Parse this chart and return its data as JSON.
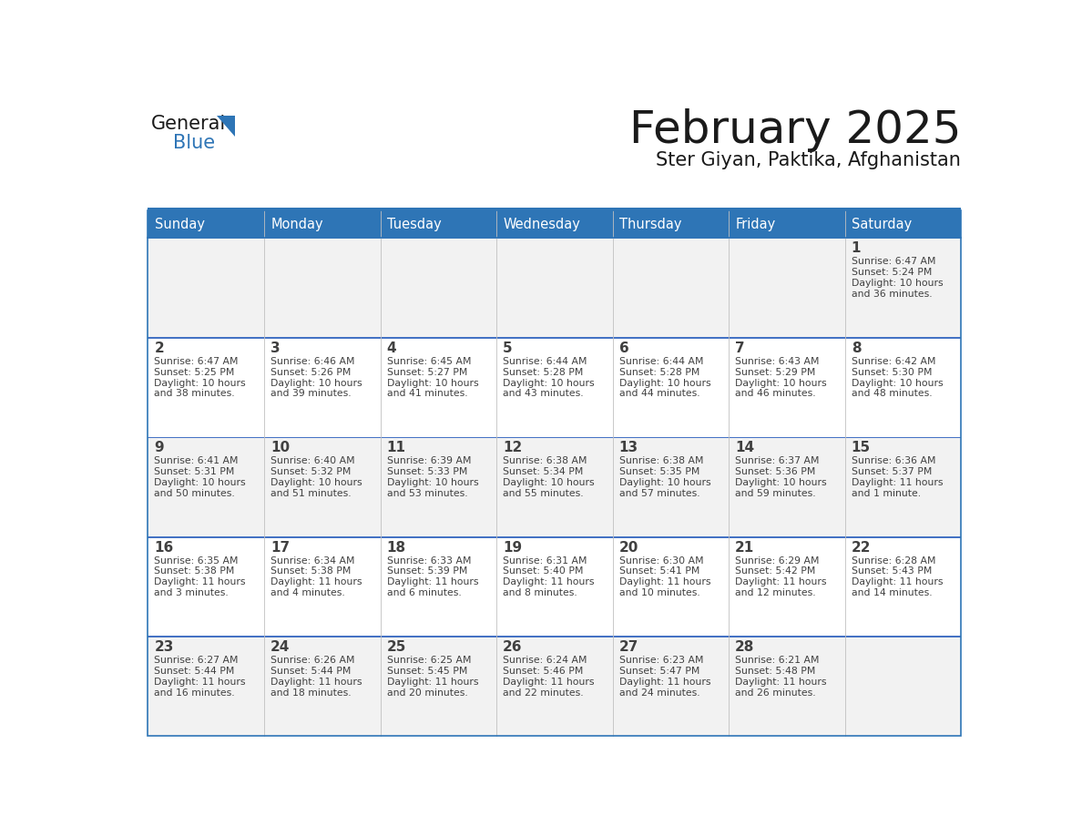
{
  "title": "February 2025",
  "subtitle": "Ster Giyan, Paktika, Afghanistan",
  "header_bg": "#2E75B6",
  "header_text_color": "#FFFFFF",
  "cell_bg_odd": "#F2F2F2",
  "cell_bg_even": "#FFFFFF",
  "border_color": "#2E75B6",
  "row_divider_color": "#4472C4",
  "day_number_color": "#404040",
  "cell_text_color": "#404040",
  "days_of_week": [
    "Sunday",
    "Monday",
    "Tuesday",
    "Wednesday",
    "Thursday",
    "Friday",
    "Saturday"
  ],
  "weeks": [
    [
      {
        "day": null,
        "sunrise": null,
        "sunset": null,
        "daylight": null
      },
      {
        "day": null,
        "sunrise": null,
        "sunset": null,
        "daylight": null
      },
      {
        "day": null,
        "sunrise": null,
        "sunset": null,
        "daylight": null
      },
      {
        "day": null,
        "sunrise": null,
        "sunset": null,
        "daylight": null
      },
      {
        "day": null,
        "sunrise": null,
        "sunset": null,
        "daylight": null
      },
      {
        "day": null,
        "sunrise": null,
        "sunset": null,
        "daylight": null
      },
      {
        "day": 1,
        "sunrise": "6:47 AM",
        "sunset": "5:24 PM",
        "daylight": "10 hours\nand 36 minutes."
      }
    ],
    [
      {
        "day": 2,
        "sunrise": "6:47 AM",
        "sunset": "5:25 PM",
        "daylight": "10 hours\nand 38 minutes."
      },
      {
        "day": 3,
        "sunrise": "6:46 AM",
        "sunset": "5:26 PM",
        "daylight": "10 hours\nand 39 minutes."
      },
      {
        "day": 4,
        "sunrise": "6:45 AM",
        "sunset": "5:27 PM",
        "daylight": "10 hours\nand 41 minutes."
      },
      {
        "day": 5,
        "sunrise": "6:44 AM",
        "sunset": "5:28 PM",
        "daylight": "10 hours\nand 43 minutes."
      },
      {
        "day": 6,
        "sunrise": "6:44 AM",
        "sunset": "5:28 PM",
        "daylight": "10 hours\nand 44 minutes."
      },
      {
        "day": 7,
        "sunrise": "6:43 AM",
        "sunset": "5:29 PM",
        "daylight": "10 hours\nand 46 minutes."
      },
      {
        "day": 8,
        "sunrise": "6:42 AM",
        "sunset": "5:30 PM",
        "daylight": "10 hours\nand 48 minutes."
      }
    ],
    [
      {
        "day": 9,
        "sunrise": "6:41 AM",
        "sunset": "5:31 PM",
        "daylight": "10 hours\nand 50 minutes."
      },
      {
        "day": 10,
        "sunrise": "6:40 AM",
        "sunset": "5:32 PM",
        "daylight": "10 hours\nand 51 minutes."
      },
      {
        "day": 11,
        "sunrise": "6:39 AM",
        "sunset": "5:33 PM",
        "daylight": "10 hours\nand 53 minutes."
      },
      {
        "day": 12,
        "sunrise": "6:38 AM",
        "sunset": "5:34 PM",
        "daylight": "10 hours\nand 55 minutes."
      },
      {
        "day": 13,
        "sunrise": "6:38 AM",
        "sunset": "5:35 PM",
        "daylight": "10 hours\nand 57 minutes."
      },
      {
        "day": 14,
        "sunrise": "6:37 AM",
        "sunset": "5:36 PM",
        "daylight": "10 hours\nand 59 minutes."
      },
      {
        "day": 15,
        "sunrise": "6:36 AM",
        "sunset": "5:37 PM",
        "daylight": "11 hours\nand 1 minute."
      }
    ],
    [
      {
        "day": 16,
        "sunrise": "6:35 AM",
        "sunset": "5:38 PM",
        "daylight": "11 hours\nand 3 minutes."
      },
      {
        "day": 17,
        "sunrise": "6:34 AM",
        "sunset": "5:38 PM",
        "daylight": "11 hours\nand 4 minutes."
      },
      {
        "day": 18,
        "sunrise": "6:33 AM",
        "sunset": "5:39 PM",
        "daylight": "11 hours\nand 6 minutes."
      },
      {
        "day": 19,
        "sunrise": "6:31 AM",
        "sunset": "5:40 PM",
        "daylight": "11 hours\nand 8 minutes."
      },
      {
        "day": 20,
        "sunrise": "6:30 AM",
        "sunset": "5:41 PM",
        "daylight": "11 hours\nand 10 minutes."
      },
      {
        "day": 21,
        "sunrise": "6:29 AM",
        "sunset": "5:42 PM",
        "daylight": "11 hours\nand 12 minutes."
      },
      {
        "day": 22,
        "sunrise": "6:28 AM",
        "sunset": "5:43 PM",
        "daylight": "11 hours\nand 14 minutes."
      }
    ],
    [
      {
        "day": 23,
        "sunrise": "6:27 AM",
        "sunset": "5:44 PM",
        "daylight": "11 hours\nand 16 minutes."
      },
      {
        "day": 24,
        "sunrise": "6:26 AM",
        "sunset": "5:44 PM",
        "daylight": "11 hours\nand 18 minutes."
      },
      {
        "day": 25,
        "sunrise": "6:25 AM",
        "sunset": "5:45 PM",
        "daylight": "11 hours\nand 20 minutes."
      },
      {
        "day": 26,
        "sunrise": "6:24 AM",
        "sunset": "5:46 PM",
        "daylight": "11 hours\nand 22 minutes."
      },
      {
        "day": 27,
        "sunrise": "6:23 AM",
        "sunset": "5:47 PM",
        "daylight": "11 hours\nand 24 minutes."
      },
      {
        "day": 28,
        "sunrise": "6:21 AM",
        "sunset": "5:48 PM",
        "daylight": "11 hours\nand 26 minutes."
      },
      {
        "day": null,
        "sunrise": null,
        "sunset": null,
        "daylight": null
      }
    ]
  ],
  "logo_general_color": "#1a1a1a",
  "logo_blue_color": "#2E75B6",
  "logo_triangle_color": "#2E75B6",
  "fig_width": 11.88,
  "fig_height": 9.18,
  "dpi": 100
}
